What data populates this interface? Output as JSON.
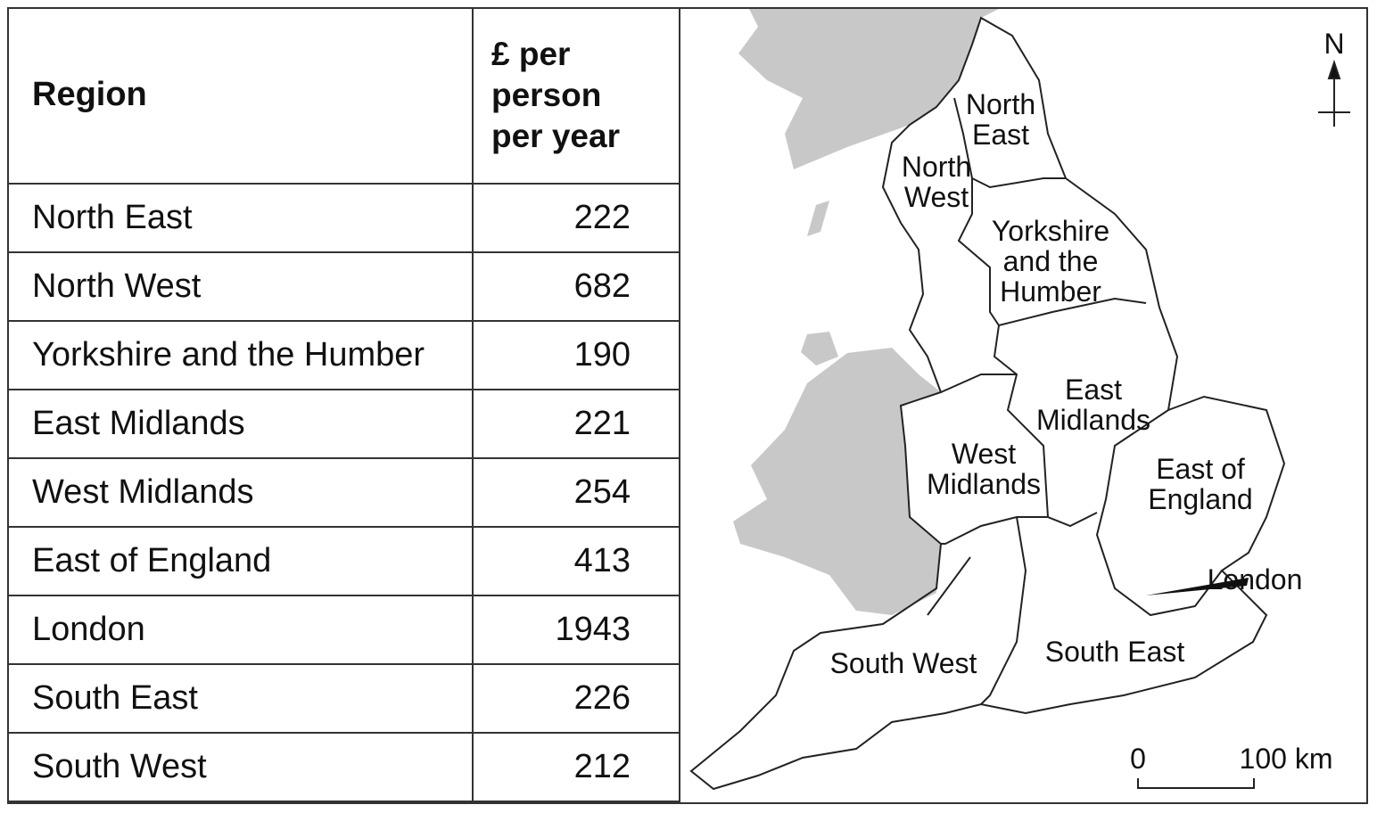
{
  "table": {
    "header": [
      "Region",
      "£ per person per year"
    ],
    "header_lines": [
      [
        "Region"
      ],
      [
        "£ per",
        "person",
        "per year"
      ]
    ],
    "rows": [
      [
        "North East",
        222
      ],
      [
        "North West",
        682
      ],
      [
        "Yorkshire and the Humber",
        190
      ],
      [
        "East Midlands",
        221
      ],
      [
        "West Midlands",
        254
      ],
      [
        "East of England",
        413
      ],
      [
        "London",
        1943
      ],
      [
        "South East",
        226
      ],
      [
        "South West",
        212
      ]
    ]
  },
  "map": {
    "regions": [
      {
        "lines": [
          "North",
          "East"
        ]
      },
      {
        "lines": [
          "North",
          "West"
        ]
      },
      {
        "lines": [
          "Yorkshire",
          "and the",
          "Humber"
        ]
      },
      {
        "lines": [
          "East",
          "Midlands"
        ]
      },
      {
        "lines": [
          "West",
          "Midlands"
        ]
      },
      {
        "lines": [
          "East of",
          "England"
        ]
      },
      {
        "lines": [
          "London"
        ]
      },
      {
        "lines": [
          "South East"
        ]
      },
      {
        "lines": [
          "South West"
        ]
      }
    ],
    "north": "N",
    "scale": [
      "0",
      "100 km"
    ]
  }
}
